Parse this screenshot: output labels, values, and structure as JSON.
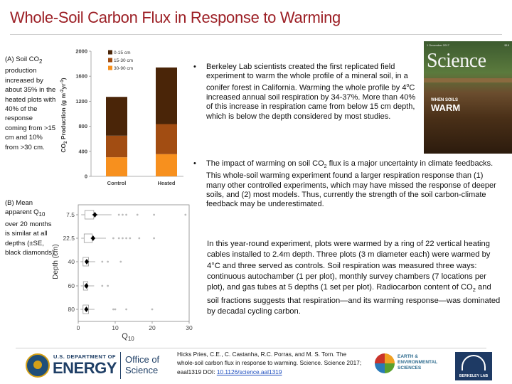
{
  "title": "Whole-Soil Carbon Flux in Response to Warming",
  "captions": {
    "a": {
      "before": "(A) Soil CO",
      "sub": "2",
      "after": " production increased by about 35% in the heated plots with 40% of the response coming from >15 cm and 10% from >30 cm."
    },
    "b": {
      "before": "(B) Mean apparent Q",
      "sub": "10",
      "after": " over 20 months is similar at all depths (±SE, black diamonds)."
    }
  },
  "chart_data": [
    {
      "type": "bar",
      "stacked": true,
      "categories": [
        "Control",
        "Heated"
      ],
      "series": [
        {
          "name": "0-15 cm",
          "color": "#4a2508",
          "values": [
            620,
            905
          ]
        },
        {
          "name": "15-30 cm",
          "color": "#a24d12",
          "values": [
            345,
            480
          ]
        },
        {
          "name": "30-90 cm",
          "color": "#f7901e",
          "values": [
            305,
            355
          ]
        }
      ],
      "totals": [
        1270,
        1740
      ],
      "ylabel_parts": {
        "before": "CO",
        "sub2": "2",
        "mid": " Production (g m",
        "sup1": "-2",
        "mid2": "yr",
        "sup2": "-1",
        "after": ")"
      },
      "yticks": [
        0,
        400,
        800,
        1200,
        1600,
        2000
      ],
      "ylim": [
        0,
        2000
      ],
      "legend": "top-left"
    },
    {
      "type": "box",
      "xlabel": "Q",
      "xlabel_sub": "10",
      "ylabel": "Depth (cm)",
      "depths": [
        "7.5",
        "22.5",
        "40",
        "60",
        "80"
      ],
      "xticks": [
        0,
        10,
        20,
        30
      ],
      "xlim": [
        0,
        30
      ],
      "mean": [
        4.5,
        4.0,
        2.3,
        2.2,
        2.2
      ],
      "se": [
        0.7,
        0.6,
        0.4,
        0.4,
        0.4
      ],
      "box": [
        [
          1.8,
          4.2
        ],
        [
          1.6,
          3.8
        ],
        [
          1.3,
          2.8
        ],
        [
          1.4,
          2.6
        ],
        [
          1.3,
          2.8
        ]
      ],
      "whisker": [
        [
          0.8,
          9.0
        ],
        [
          0.8,
          7.5
        ],
        [
          0.6,
          4.6
        ],
        [
          0.7,
          4.3
        ],
        [
          0.6,
          4.4
        ]
      ],
      "outliers": [
        [
          11,
          12,
          13,
          16,
          20.5,
          29
        ],
        [
          9.5,
          11,
          12,
          13,
          14,
          16.5,
          20.5
        ],
        [
          6.5,
          8,
          11.5
        ],
        [
          6.5,
          8
        ],
        [
          9.5,
          10,
          13,
          20
        ]
      ]
    }
  ],
  "bullets": {
    "b1": {
      "text1": "Berkeley Lab scientists created the first replicated field experiment to warm the whole profile of a mineral soil, in a conifer forest in California. Warming the whole profile by 4",
      "sup": "o",
      "text2": "C increased annual soil respiration by 34-37%. More than 40% of this increase in respiration came from below 15 cm depth, which is below the depth considered by most studies."
    },
    "b2": {
      "text1": "The impact of warming on soil CO",
      "sub": "2",
      "text2": " flux is a major uncertainty in climate feedbacks. This whole-soil warming experiment found a larger respiration response than (1) many other controlled experiments, which may have missed the response of deeper soils, and (2) most models. Thus, currently the strength of the soil carbon-climate feedback may be underestimated."
    }
  },
  "paragraph": {
    "text1": "In this year-round experiment, plots were warmed by a ring of 22 vertical heating cables installed to 2.4m depth. Three plots (3 m diameter each) were warmed by 4°C and three served as controls. Soil respiration was measured three ways: continuous autochamber (1 per plot), monthly survey chambers (7 locations per plot), and gas tubes at 5 depths (1 set per plot). Radiocarbon content of CO",
    "sub": "2",
    "text2": " and soil fractions suggests that respiration—and its warming response—was dominated by decadal cycling carbon."
  },
  "cover": {
    "logo": "Science",
    "headline_small": "WHEN SOILS",
    "headline_big": "WARM",
    "date": "1 December 2017",
    "price": "$15"
  },
  "footer": {
    "doe_dept": "U.S. DEPARTMENT OF",
    "doe_energy": "ENERGY",
    "doe_office_line1": "Office of",
    "doe_office_line2": "Science",
    "citation_text": "Hicks Pries, C.E., C. Castanha, R.C. Porras, and M. S. Torn. The whole-soil carbon flux in response to warming. Science. Science 2017; eaal1319 DOI: ",
    "citation_link": "10.1126/science.aal1319 ",
    "ees_line1": "EARTH &",
    "ees_line2": "ENVIRONMENTAL",
    "ees_line3": "SCIENCES",
    "bl_text": "BERKELEY LAB"
  },
  "colors": {
    "title": "#9c1f25",
    "doe_blue": "#1f3f66",
    "link": "#1f4fbf"
  }
}
